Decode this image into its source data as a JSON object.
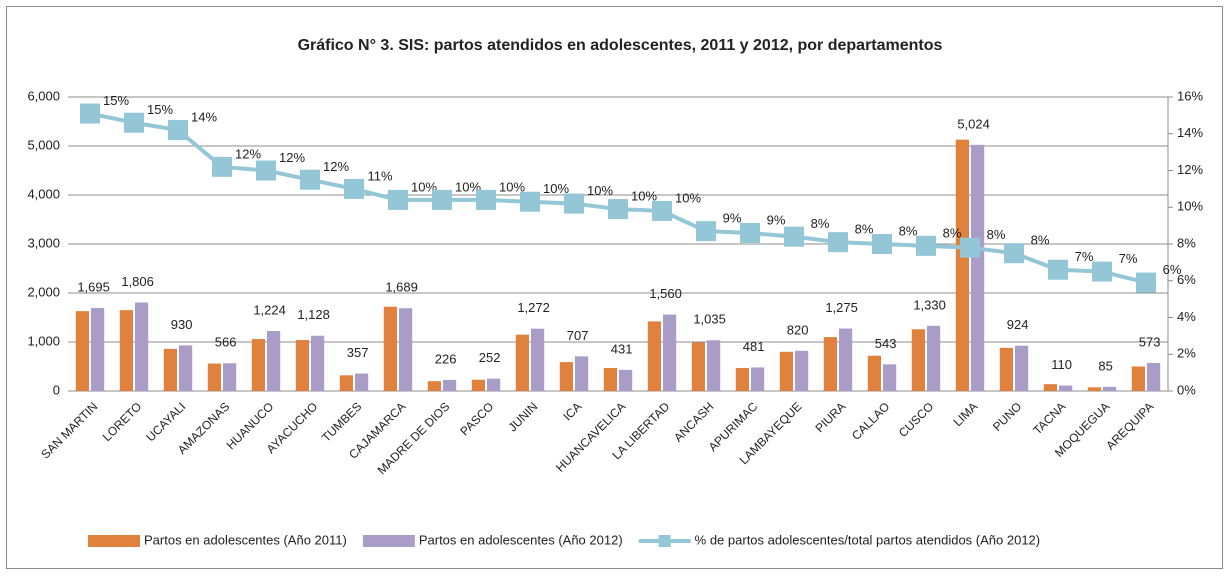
{
  "chart_data": {
    "type": "bar_line",
    "title": "Gráfico N° 3. SIS: partos atendidos en adolescentes, 2011 y 2012, por departamentos",
    "categories": [
      "SAN MARTIN",
      "LORETO",
      "UCAYALI",
      "AMAZONAS",
      "HUANUCO",
      "AYACUCHO",
      "TUMBES",
      "CAJAMARCA",
      "MADRE DE DIOS",
      "PASCO",
      "JUNIN",
      "ICA",
      "HUANCAVELICA",
      "LA LIBERTAD",
      "ANCASH",
      "APURIMAC",
      "LAMBAYEQUE",
      "PIURA",
      "CALLAO",
      "CUSCO",
      "LIMA",
      "PUNO",
      "TACNA",
      "MOQUEGUA",
      "AREQUIPA"
    ],
    "series": [
      {
        "name": "Partos en adolescentes (Año 2011)",
        "color": "#e0813d",
        "type": "bar",
        "values": [
          1630,
          1650,
          860,
          560,
          1060,
          1040,
          320,
          1720,
          200,
          230,
          1150,
          590,
          470,
          1420,
          990,
          470,
          800,
          1100,
          720,
          1260,
          5130,
          880,
          140,
          75,
          500
        ]
      },
      {
        "name": "Partos en adolescentes (Año 2012)",
        "color": "#a99cc6",
        "type": "bar",
        "values": [
          1695,
          1806,
          930,
          566,
          1224,
          1128,
          357,
          1689,
          226,
          252,
          1272,
          707,
          431,
          1560,
          1035,
          481,
          820,
          1275,
          543,
          1330,
          5024,
          924,
          110,
          85,
          573
        ],
        "value_labels": [
          "1,695",
          "1,806",
          "930",
          "566",
          "1,224",
          "1,128",
          "357",
          "1,689",
          "226",
          "252",
          "1,272",
          "707",
          "431",
          "1,560",
          "1,035",
          "481",
          "820",
          "1,275",
          "543",
          "1,330",
          "5,024",
          "924",
          "110",
          "85",
          "573"
        ]
      },
      {
        "name": "% de partos adolescentes/total partos atendidos (Año 2012)",
        "color": "#93c6d7",
        "type": "line",
        "axis": "y2",
        "values": [
          15.1,
          14.6,
          14.2,
          12.2,
          12.0,
          11.5,
          11.0,
          10.4,
          10.4,
          10.4,
          10.3,
          10.2,
          9.9,
          9.8,
          8.7,
          8.6,
          8.4,
          8.1,
          8.0,
          7.9,
          7.8,
          7.5,
          6.6,
          6.5,
          5.9
        ],
        "value_labels": [
          "15%",
          "15%",
          "14%",
          "12%",
          "12%",
          "12%",
          "11%",
          "10%",
          "10%",
          "10%",
          "10%",
          "10%",
          "10%",
          "10%",
          "9%",
          "9%",
          "8%",
          "8%",
          "8%",
          "8%",
          "8%",
          "8%",
          "7%",
          "7%",
          "6%"
        ]
      }
    ],
    "ylim": [
      0,
      6000
    ],
    "yticks": [
      0,
      {
        "value": 1000,
        "label": "1,000"
      },
      {
        "value": 2000,
        "label": "2,000"
      },
      {
        "value": 3000,
        "label": "3,000"
      },
      {
        "value": 4000,
        "label": "4,000"
      },
      {
        "value": 5000,
        "label": "5,000"
      },
      {
        "value": 6000,
        "label": "6,000"
      }
    ],
    "y2lim": [
      0,
      16
    ],
    "y2ticks": [
      {
        "value": 0,
        "label": "0%"
      },
      {
        "value": 2,
        "label": "2%"
      },
      {
        "value": 4,
        "label": "4%"
      },
      {
        "value": 6,
        "label": "6%"
      },
      {
        "value": 8,
        "label": "8%"
      },
      {
        "value": 10,
        "label": "10%"
      },
      {
        "value": 12,
        "label": "12%"
      },
      {
        "value": 14,
        "label": "14%"
      },
      {
        "value": 16,
        "label": "16%"
      }
    ],
    "grid": true,
    "legend": "bottom"
  }
}
